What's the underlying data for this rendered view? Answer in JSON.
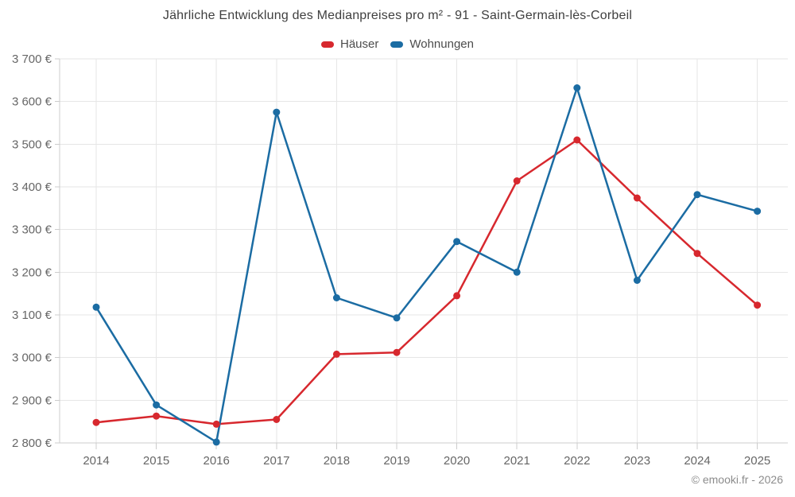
{
  "footer": {
    "credit": "© emooki.fr - 2026"
  },
  "colors": {
    "hauser_red": "#d7282e",
    "wohnungen_blue": "#1b6ca3",
    "grid": "#e6e6e6",
    "axis": "#cccccc",
    "tick": "#cccccc",
    "axis_text": "#666666",
    "title_text": "#3f3f3f",
    "legend_text": "#4c4c4c",
    "credit_text": "#8c8c8c"
  },
  "chart_data": {
    "type": "line",
    "title": "Jährliche Entwicklung des Medianpreises pro m² - 91 - Saint-Germain-lès-Corbeil",
    "categories": [
      "2014",
      "2015",
      "2016",
      "2017",
      "2018",
      "2019",
      "2020",
      "2021",
      "2022",
      "2023",
      "2024",
      "2025"
    ],
    "series": [
      {
        "name": "Häuser",
        "color": "#d7282e",
        "values": [
          2848,
          2863,
          2844,
          2855,
          3008,
          3012,
          3145,
          3414,
          3510,
          3374,
          3244,
          3123
        ]
      },
      {
        "name": "Wohnungen",
        "color": "#1b6ca3",
        "values": [
          3118,
          2889,
          2802,
          3575,
          3140,
          3093,
          3272,
          3200,
          3632,
          3181,
          3382,
          3343
        ]
      }
    ],
    "ylim": [
      2800,
      3700
    ],
    "y_ticks": [
      {
        "value": 2800,
        "label": "2 800 €"
      },
      {
        "value": 2900,
        "label": "2 900 €"
      },
      {
        "value": 3000,
        "label": "3 000 €"
      },
      {
        "value": 3100,
        "label": "3 100 €"
      },
      {
        "value": 3200,
        "label": "3 200 €"
      },
      {
        "value": 3300,
        "label": "3 300 €"
      },
      {
        "value": 3400,
        "label": "3 400 €"
      },
      {
        "value": 3500,
        "label": "3 500 €"
      },
      {
        "value": 3600,
        "label": "3 600 €"
      },
      {
        "value": 3700,
        "label": "3 700 €"
      }
    ],
    "grid": true,
    "legend_position": "top",
    "marker": "circle"
  }
}
